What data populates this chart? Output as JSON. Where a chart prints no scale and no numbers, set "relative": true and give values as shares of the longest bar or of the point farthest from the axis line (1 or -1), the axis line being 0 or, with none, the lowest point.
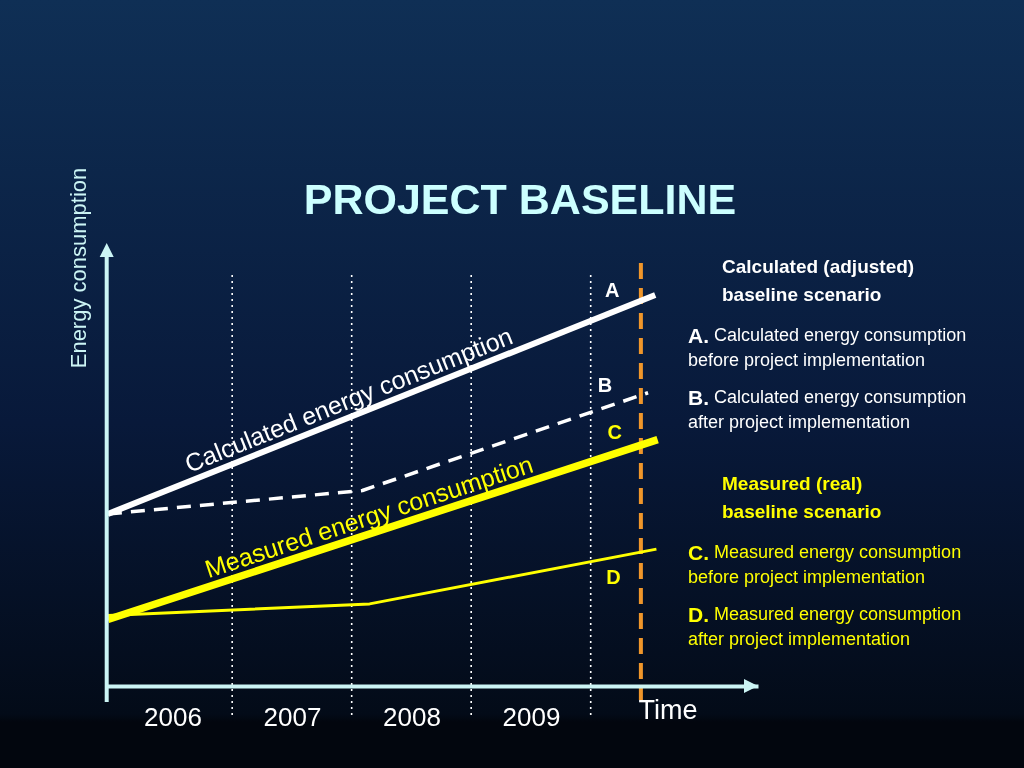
{
  "chart_data": {
    "type": "line",
    "title": "PROJECT BASELINE",
    "xlabel": "Time",
    "ylabel": "Energy consumption",
    "relative": true,
    "xlim": [
      2005.95,
      2011.4
    ],
    "xticks": [
      {
        "value": 2006.5,
        "label": "2006"
      },
      {
        "value": 2007.5,
        "label": "2007"
      },
      {
        "value": 2008.5,
        "label": "2008"
      },
      {
        "value": 2009.5,
        "label": "2009"
      }
    ],
    "series": [
      {
        "name": "A",
        "color": "#ffffff",
        "x": [
          2005.96,
          2010.54
        ],
        "values": [
          0.44,
          1
        ]
      },
      {
        "name": "B",
        "color": "#ffffff",
        "line_style": "dashed",
        "x": [
          2005.96,
          2008.09,
          2010.48
        ],
        "values": [
          0.44,
          0.5,
          0.75
        ]
      },
      {
        "name": "C",
        "color": "#ffff00",
        "x": [
          2005.96,
          2010.56
        ],
        "values": [
          0.17,
          0.63
        ]
      },
      {
        "name": "D",
        "color": "#ffff00",
        "x": [
          2005.96,
          2008.15,
          2010.55
        ],
        "values": [
          0.18,
          0.21,
          0.35
        ]
      }
    ],
    "ref_lines": [
      {
        "axis": "x",
        "value": 2007,
        "color": "#ffffff",
        "line_style": "dotted"
      },
      {
        "axis": "x",
        "value": 2008,
        "color": "#ffffff",
        "line_style": "dotted"
      },
      {
        "axis": "x",
        "value": 2009,
        "color": "#ffffff",
        "line_style": "dotted"
      },
      {
        "axis": "x",
        "value": 2010,
        "color": "#ffffff",
        "line_style": "dotted"
      },
      {
        "axis": "x",
        "value": 2010.42,
        "color": "#f0962a",
        "line_style": "dashed"
      }
    ],
    "annotations": [
      {
        "text": "Calculated energy consumption",
        "x": 2008.03,
        "y": 0.69
      },
      {
        "text": "Measured energy consumption",
        "x": 2008.19,
        "y": 0.39
      },
      "Calculated (adjusted) baseline scenario",
      "A. Calculated energy consumption before project implementation",
      "B. Calculated energy consumption after project implementation",
      "Measured (real) baseline scenario",
      "C. Measured energy consumption before project implementation",
      "D. Measured energy consumption after project implementation"
    ]
  }
}
